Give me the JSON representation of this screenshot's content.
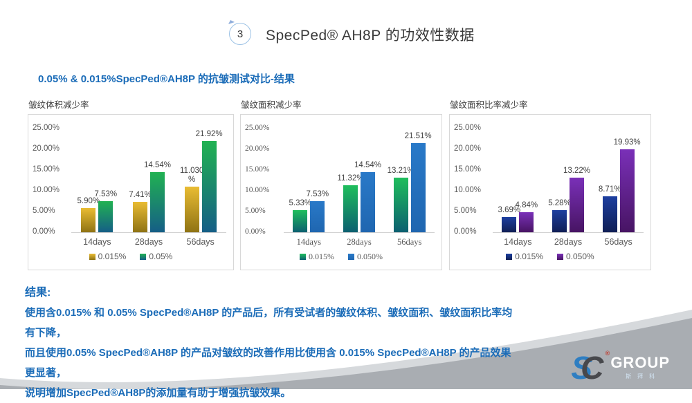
{
  "slide": {
    "badge_number": "3",
    "title": "SpecPed® AH8P 的功效性数据",
    "subtitle": "0.05% & 0.015%SpecPed®AH8P 的抗皱测试对比-结果"
  },
  "results": {
    "heading": "结果:",
    "lines": [
      "使用含0.015% 和 0.05% SpecPed®AH8P 的产品后，所有受试者的皱纹体积、皱纹面积、皱纹面积比率均有下降，",
      "而且使用0.05%  SpecPed®AH8P 的产品对皱纹的改善作用比使用含 0.015% SpecPed®AH8P 的产品效果更显著，",
      "说明增加SpecPed®AH8P的添加量有助于增强抗皱效果。"
    ]
  },
  "logo": {
    "s": "S",
    "c": "C",
    "reg": "®",
    "group": "GROUP",
    "cn": "斯拜科"
  },
  "colors": {
    "accent_blue": "#1b6cb8",
    "footer_light_gray": "#d6d9dc",
    "footer_dark_gray": "#a9adb2",
    "chart_border": "#d8d8d8"
  },
  "chart_data": [
    {
      "type": "bar",
      "title": "皱纹体积减少率",
      "categories": [
        "14days",
        "28days",
        "56days"
      ],
      "series": [
        {
          "name": "0.015%",
          "values": [
            5.9,
            7.41,
            11.03
          ],
          "labels": [
            "5.90%",
            "7.41%",
            "11.030\n%"
          ],
          "color_top": "#e9bc33",
          "color_bottom": "#8f7314"
        },
        {
          "name": "0.05%",
          "values": [
            7.53,
            14.54,
            21.92
          ],
          "labels": [
            "7.53%",
            "14.54%",
            "21.92%"
          ],
          "color_top": "#21b252",
          "color_bottom": "#155e86"
        }
      ],
      "ylim": [
        0,
        25
      ],
      "yticks": [
        "0.00%",
        "5.00%",
        "10.00%",
        "15.00%",
        "20.00%",
        "25.00%"
      ],
      "grid": false,
      "legend_position": "bottom",
      "font": "sans"
    },
    {
      "type": "bar",
      "title": "皱纹面积减少率",
      "categories": [
        "14days",
        "28days",
        "56days"
      ],
      "series": [
        {
          "name": "0.015%",
          "values": [
            5.33,
            11.32,
            13.21
          ],
          "labels": [
            "5.33%",
            "11.32%",
            "13.21%"
          ],
          "color_top": "#1fbe5c",
          "color_bottom": "#0c5f70"
        },
        {
          "name": "0.050%",
          "values": [
            7.53,
            14.54,
            21.51
          ],
          "labels": [
            "7.53%",
            "14.54%",
            "21.51%"
          ],
          "color_top": "#2979c8",
          "color_bottom": "#1f66b0"
        }
      ],
      "ylim": [
        0,
        25
      ],
      "yticks": [
        "0.00%",
        "5.00%",
        "10.00%",
        "15.00%",
        "20.00%",
        "25.00%"
      ],
      "grid": false,
      "legend_position": "bottom",
      "font": "serif"
    },
    {
      "type": "bar",
      "title": "皱纹面积比率减少率",
      "categories": [
        "14days",
        "28days",
        "56days"
      ],
      "series": [
        {
          "name": "0.015%",
          "values": [
            3.69,
            5.28,
            8.71
          ],
          "labels": [
            "3.69%",
            "5.28%",
            "8.71%"
          ],
          "color_top": "#1d3fa0",
          "color_bottom": "#101f55"
        },
        {
          "name": "0.050%",
          "values": [
            4.84,
            13.22,
            19.93
          ],
          "labels": [
            "4.84%",
            "13.22%",
            "19.93%"
          ],
          "color_top": "#7a30b8",
          "color_bottom": "#471463"
        }
      ],
      "ylim": [
        0,
        25
      ],
      "yticks": [
        "0.00%",
        "5.00%",
        "10.00%",
        "15.00%",
        "20.00%",
        "25.00%"
      ],
      "grid": false,
      "legend_position": "bottom",
      "font": "sans"
    }
  ]
}
